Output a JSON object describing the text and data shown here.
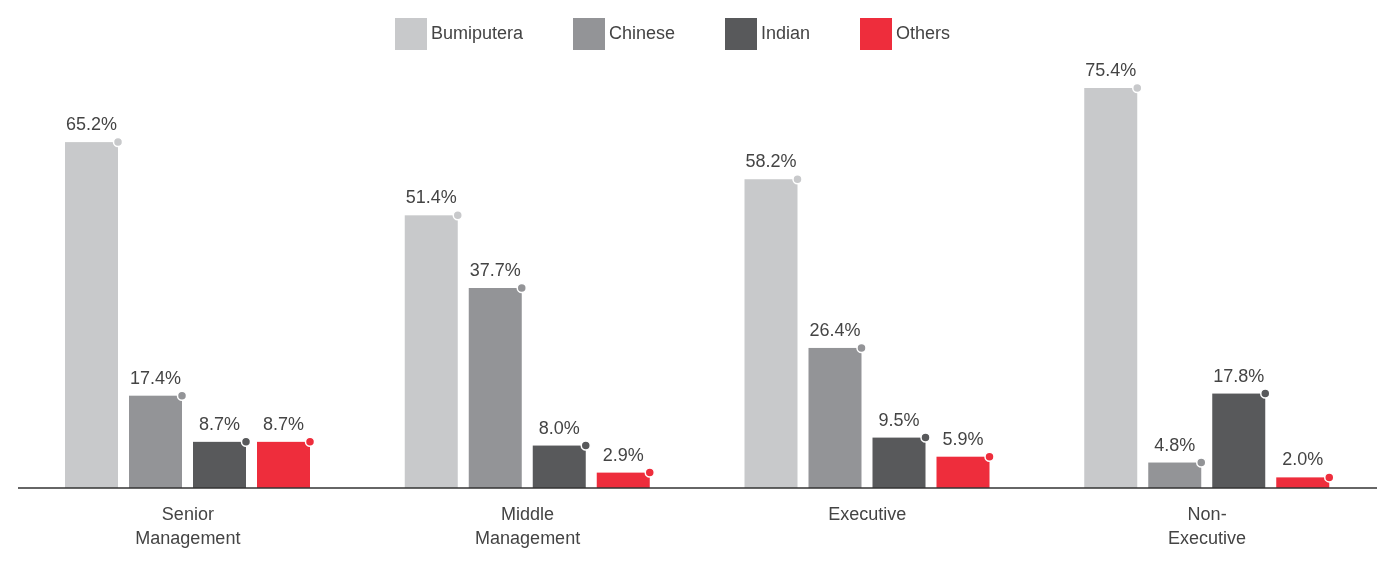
{
  "chart_data": {
    "type": "bar",
    "categories": [
      "Senior Management",
      "Middle Management",
      "Executive",
      "Non-Executive"
    ],
    "series": [
      {
        "name": "Bumiputera",
        "color": "#c8c9cb",
        "values": [
          65.2,
          51.4,
          58.2,
          75.4
        ],
        "value_labels": [
          "65.2%",
          "51.4%",
          "58.2%",
          "75.4%"
        ]
      },
      {
        "name": "Chinese",
        "color": "#939497",
        "values": [
          17.4,
          37.7,
          26.4,
          4.8
        ],
        "value_labels": [
          "17.4%",
          "37.7%",
          "26.4%",
          "4.8%"
        ]
      },
      {
        "name": "Indian",
        "color": "#58595b",
        "values": [
          8.7,
          8.0,
          9.5,
          17.8
        ],
        "value_labels": [
          "8.7%",
          "8.0%",
          "9.5%",
          "17.8%"
        ]
      },
      {
        "name": "Others",
        "color": "#ee2d3c",
        "values": [
          8.7,
          2.9,
          5.9,
          2.0
        ],
        "value_labels": [
          "8.7%",
          "2.9%",
          "5.9%",
          "2.0%"
        ]
      }
    ],
    "legend": "top",
    "grid": false
  }
}
